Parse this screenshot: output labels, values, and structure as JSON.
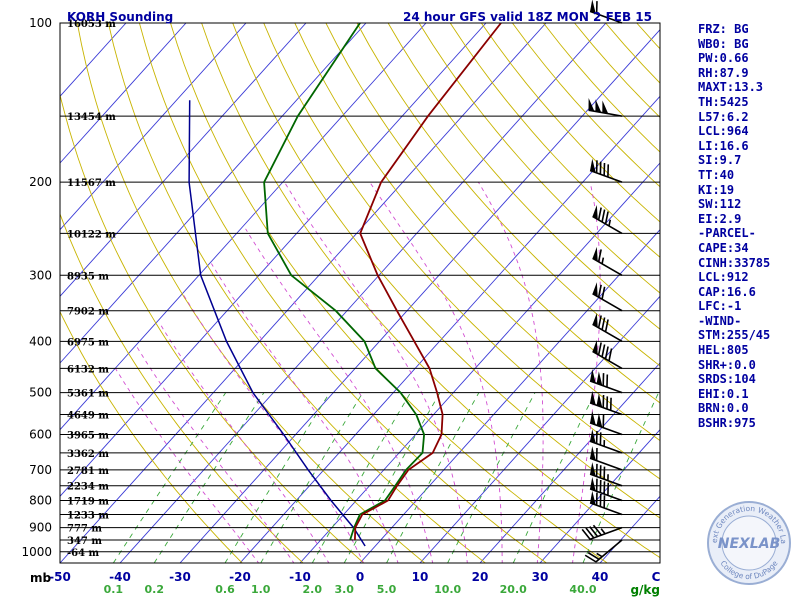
{
  "header": {
    "station_title": "KORH Sounding",
    "valid_title": "24 hour GFS valid 18Z MON  2 FEB 15"
  },
  "indices": [
    "FRZ: BG",
    "WB0: BG",
    "PW:0.66",
    "RH:87.9",
    "MAXT:13.3",
    "TH:5425",
    "L57:6.2",
    "LCL:964",
    "LI:16.6",
    "SI:9.7",
    "TT:40",
    "KI:19",
    "SW:112",
    "EI:2.9",
    "-PARCEL-",
    "CAPE:34",
    "CINH:33785",
    "LCL:912",
    "CAP:16.6",
    "LFC:-1",
    "-WIND-",
    "STM:255/45",
    "HEL:805",
    "SHR+:0.0",
    "SRDS:104",
    "EHI:0.1",
    "BRN:0.0",
    "BSHR:975"
  ],
  "logo": {
    "text": "NEXLAB",
    "ring_top": "Next Generation Weather Lab",
    "ring_bottom": "College of DuPage"
  },
  "chart_data": {
    "type": "skew-t",
    "y_axis_title": "mb",
    "x_axis_unit": "C",
    "mixing_ratio_unit": "g/kg",
    "pressure_ticks": [
      100,
      200,
      300,
      400,
      500,
      600,
      700,
      800,
      900,
      1000
    ],
    "temperature_ticks": [
      -50,
      -40,
      -30,
      -20,
      -10,
      0,
      10,
      20,
      30,
      40
    ],
    "mixing_ratio_ticks": [
      "0.1",
      "0.2",
      "0.6",
      "1.0",
      "2.0",
      "3.0",
      "5.0",
      "10.0",
      "20.0",
      "40.0"
    ],
    "height_levels": [
      {
        "pressure": 100,
        "label": "16053 m"
      },
      {
        "pressure": 150,
        "label": "13454 m"
      },
      {
        "pressure": 200,
        "label": "11567 m"
      },
      {
        "pressure": 250,
        "label": "10122 m"
      },
      {
        "pressure": 300,
        "label": "8935 m"
      },
      {
        "pressure": 350,
        "label": "7902 m"
      },
      {
        "pressure": 400,
        "label": "6975 m"
      },
      {
        "pressure": 450,
        "label": "6132 m"
      },
      {
        "pressure": 500,
        "label": "5361 m"
      },
      {
        "pressure": 550,
        "label": "4649 m"
      },
      {
        "pressure": 600,
        "label": "3965 m"
      },
      {
        "pressure": 650,
        "label": "3362 m"
      },
      {
        "pressure": 700,
        "label": "2781 m"
      },
      {
        "pressure": 750,
        "label": "2234 m"
      },
      {
        "pressure": 800,
        "label": "1719 m"
      },
      {
        "pressure": 850,
        "label": "1233 m"
      },
      {
        "pressure": 900,
        "label": "777 m"
      },
      {
        "pressure": 950,
        "label": "347 m"
      },
      {
        "pressure": 1000,
        "label": "-64 m"
      }
    ],
    "temperature": [
      {
        "p": 100,
        "t": -57.5
      },
      {
        "p": 150,
        "t": -55.7
      },
      {
        "p": 200,
        "t": -53.6
      },
      {
        "p": 250,
        "t": -49.4
      },
      {
        "p": 300,
        "t": -40.2
      },
      {
        "p": 350,
        "t": -31.7
      },
      {
        "p": 400,
        "t": -24.2
      },
      {
        "p": 450,
        "t": -17.6
      },
      {
        "p": 500,
        "t": -12.7
      },
      {
        "p": 550,
        "t": -8.5
      },
      {
        "p": 600,
        "t": -5.7
      },
      {
        "p": 650,
        "t": -4.4
      },
      {
        "p": 700,
        "t": -5.9
      },
      {
        "p": 750,
        "t": -5.4
      },
      {
        "p": 800,
        "t": -4.7
      },
      {
        "p": 850,
        "t": -6.9
      },
      {
        "p": 900,
        "t": -6.1
      },
      {
        "p": 950,
        "t": -4.3
      }
    ],
    "dewpoint": [
      {
        "p": 100,
        "t": -81.0
      },
      {
        "p": 150,
        "t": -77.4
      },
      {
        "p": 200,
        "t": -73.1
      },
      {
        "p": 250,
        "t": -64.8
      },
      {
        "p": 300,
        "t": -54.6
      },
      {
        "p": 350,
        "t": -41.9
      },
      {
        "p": 400,
        "t": -32.5
      },
      {
        "p": 450,
        "t": -26.6
      },
      {
        "p": 500,
        "t": -18.8
      },
      {
        "p": 550,
        "t": -12.9
      },
      {
        "p": 600,
        "t": -8.6
      },
      {
        "p": 650,
        "t": -6.1
      },
      {
        "p": 700,
        "t": -6.3
      },
      {
        "p": 750,
        "t": -5.7
      },
      {
        "p": 800,
        "t": -5.2
      },
      {
        "p": 850,
        "t": -7.3
      },
      {
        "p": 900,
        "t": -6.3
      },
      {
        "p": 950,
        "t": -5.1
      }
    ],
    "parcel": [
      {
        "p": 140,
        "t": -97.8
      },
      {
        "p": 200,
        "t": -85.6
      },
      {
        "p": 300,
        "t": -69.7
      },
      {
        "p": 400,
        "t": -55.5
      },
      {
        "p": 500,
        "t": -43.4
      },
      {
        "p": 600,
        "t": -32.0
      },
      {
        "p": 700,
        "t": -22.6
      },
      {
        "p": 800,
        "t": -14.2
      },
      {
        "p": 900,
        "t": -6.4
      },
      {
        "p": 975,
        "t": -1.7
      }
    ],
    "winds": [
      {
        "p": 100,
        "dir": 290,
        "speed": 60
      },
      {
        "p": 150,
        "dir": 280,
        "speed": 150
      },
      {
        "p": 200,
        "dir": 290,
        "speed": 90
      },
      {
        "p": 250,
        "dir": 300,
        "speed": 85
      },
      {
        "p": 300,
        "dir": 300,
        "speed": 65
      },
      {
        "p": 350,
        "dir": 300,
        "speed": 70
      },
      {
        "p": 400,
        "dir": 300,
        "speed": 80
      },
      {
        "p": 450,
        "dir": 300,
        "speed": 90
      },
      {
        "p": 500,
        "dir": 290,
        "speed": 120
      },
      {
        "p": 550,
        "dir": 290,
        "speed": 130
      },
      {
        "p": 600,
        "dir": 290,
        "speed": 110
      },
      {
        "p": 650,
        "dir": 290,
        "speed": 75
      },
      {
        "p": 700,
        "dir": 290,
        "speed": 60
      },
      {
        "p": 750,
        "dir": 290,
        "speed": 85
      },
      {
        "p": 800,
        "dir": 290,
        "speed": 90
      },
      {
        "p": 850,
        "dir": 290,
        "speed": 80
      },
      {
        "p": 900,
        "dir": 250,
        "speed": 45
      },
      {
        "p": 950,
        "dir": 230,
        "speed": 25
      }
    ]
  }
}
